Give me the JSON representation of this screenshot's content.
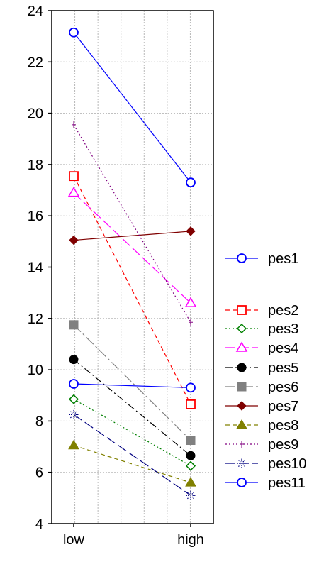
{
  "chart_data": {
    "type": "line",
    "title": "",
    "xlabel": "",
    "ylabel": "",
    "categories": [
      "low",
      "high"
    ],
    "ylim": [
      4,
      24
    ],
    "yticks": [
      4,
      6,
      8,
      10,
      12,
      14,
      16,
      18,
      20,
      22,
      24
    ],
    "grid": true,
    "legend_position": "right",
    "series": [
      {
        "name": "pes1",
        "values": [
          23.15,
          17.3
        ],
        "color": "#0000ff",
        "marker": "circle-open",
        "dash": "solid"
      },
      {
        "name": "pes2",
        "values": [
          17.55,
          8.65
        ],
        "color": "#ff0000",
        "marker": "square-open",
        "dash": "dashed"
      },
      {
        "name": "pes3",
        "values": [
          8.85,
          6.25
        ],
        "color": "#008000",
        "marker": "diamond-open",
        "dash": "dotted"
      },
      {
        "name": "pes4",
        "values": [
          16.9,
          12.6
        ],
        "color": "#ff00ff",
        "marker": "triangle-open",
        "dash": "longdash"
      },
      {
        "name": "pes5",
        "values": [
          10.4,
          6.65
        ],
        "color": "#000000",
        "marker": "circle-filled",
        "dash": "dashdot"
      },
      {
        "name": "pes6",
        "values": [
          11.75,
          7.25
        ],
        "color": "#808080",
        "marker": "square-filled",
        "dash": "longdashdot"
      },
      {
        "name": "pes7",
        "values": [
          15.05,
          15.4
        ],
        "color": "#800000",
        "marker": "diamond-filled",
        "dash": "solid"
      },
      {
        "name": "pes8",
        "values": [
          7.05,
          5.6
        ],
        "color": "#808000",
        "marker": "triangle-filled",
        "dash": "dashed"
      },
      {
        "name": "pes9",
        "values": [
          19.55,
          11.85
        ],
        "color": "#800080",
        "marker": "plus",
        "dash": "dotted"
      },
      {
        "name": "pes10",
        "values": [
          8.25,
          5.1
        ],
        "color": "#000080",
        "marker": "star",
        "dash": "longdash"
      },
      {
        "name": "pes11",
        "values": [
          9.45,
          9.3
        ],
        "color": "#0000ff",
        "marker": "circle-open",
        "dash": "solid"
      }
    ]
  }
}
